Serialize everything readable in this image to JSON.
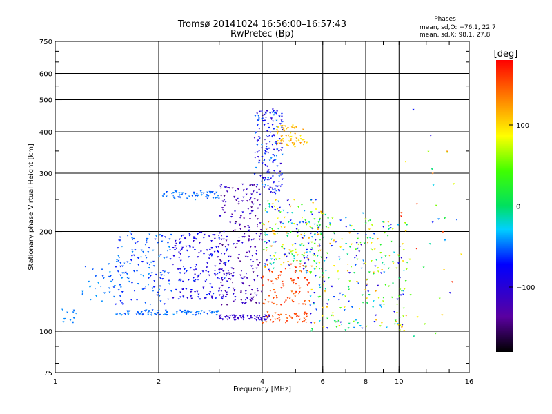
{
  "chart_data": {
    "type": "scatter",
    "title": "Tromsø 20141024  16:56:00–16:57:43",
    "subtitle": "RwPretec (Bp)",
    "xlabel": "Frequency [MHz]",
    "ylabel": "Stationary phase Virtual Height [km]",
    "x_scale": "log",
    "y_scale": "log",
    "xlim": [
      1,
      16
    ],
    "ylim": [
      75,
      750
    ],
    "grid": true,
    "x_ticks": [
      {
        "value": 1,
        "label": "1"
      },
      {
        "value": 2,
        "label": "2"
      },
      {
        "value": 4,
        "label": "4"
      },
      {
        "value": 6,
        "label": "6"
      },
      {
        "value": 8,
        "label": "8"
      },
      {
        "value": 10,
        "label": "10"
      },
      {
        "value": 16,
        "label": "16"
      }
    ],
    "x_gridlines": [
      2,
      4,
      6,
      8,
      10
    ],
    "y_ticks": [
      {
        "value": 75,
        "label": "75"
      },
      {
        "value": 100,
        "label": "100"
      },
      {
        "value": 200,
        "label": "200"
      },
      {
        "value": 300,
        "label": "300"
      },
      {
        "value": 400,
        "label": "400"
      },
      {
        "value": 500,
        "label": "500"
      },
      {
        "value": 600,
        "label": "600"
      },
      {
        "value": 750,
        "label": "750"
      }
    ],
    "y_gridlines": [
      100,
      200,
      300,
      400,
      500,
      600
    ],
    "phase_stats": {
      "heading": "Phases",
      "line_o": "mean, sd,O: −76.1, 22.7",
      "line_x": "mean, sd,X:  98.1, 27.8"
    },
    "colorbar": {
      "title": "[deg]",
      "min": -180,
      "max": 180,
      "ticks": [
        {
          "value": 100,
          "label": "100"
        },
        {
          "value": 0,
          "label": "0"
        },
        {
          "value": -100,
          "label": "−100"
        }
      ]
    },
    "color_field": "phase_deg",
    "clusters": [
      {
        "f": [
          1.03,
          1.15
        ],
        "h": [
          104,
          118
        ],
        "phase": [
          -50,
          -40
        ],
        "n": 12
      },
      {
        "f": [
          1.2,
          1.5
        ],
        "h": [
          120,
          160
        ],
        "phase": [
          -60,
          -35
        ],
        "n": 30
      },
      {
        "f": [
          1.5,
          3.0
        ],
        "h": [
          112,
          116
        ],
        "phase": [
          -60,
          -40
        ],
        "n": 90
      },
      {
        "f": [
          3.0,
          4.2
        ],
        "h": [
          108,
          112
        ],
        "phase": [
          -120,
          -95
        ],
        "n": 70
      },
      {
        "f": [
          4.0,
          5.5
        ],
        "h": [
          106,
          115
        ],
        "phase": [
          140,
          165
        ],
        "n": 45
      },
      {
        "f": [
          1.5,
          2.2
        ],
        "h": [
          120,
          200
        ],
        "phase": [
          -70,
          -40
        ],
        "n": 140
      },
      {
        "f": [
          2.2,
          3.2
        ],
        "h": [
          125,
          200
        ],
        "phase": [
          -110,
          -60
        ],
        "n": 180
      },
      {
        "f": [
          3.0,
          4.0
        ],
        "h": [
          120,
          280
        ],
        "phase": [
          -150,
          -90
        ],
        "n": 220
      },
      {
        "f": [
          2.0,
          3.0
        ],
        "h": [
          250,
          265
        ],
        "phase": [
          -60,
          -40
        ],
        "n": 60
      },
      {
        "f": [
          3.8,
          4.6
        ],
        "h": [
          260,
          470
        ],
        "phase": [
          -110,
          -40
        ],
        "n": 170
      },
      {
        "f": [
          4.4,
          5.4
        ],
        "h": [
          360,
          420
        ],
        "phase": [
          90,
          130
        ],
        "n": 60
      },
      {
        "f": [
          4.0,
          6.0
        ],
        "h": [
          150,
          250
        ],
        "phase": [
          -110,
          130
        ],
        "n": 200
      },
      {
        "f": [
          4.0,
          5.5
        ],
        "h": [
          120,
          160
        ],
        "phase": [
          140,
          170
        ],
        "n": 80
      },
      {
        "f": [
          5.5,
          8.0
        ],
        "h": [
          100,
          230
        ],
        "phase": [
          -110,
          120
        ],
        "n": 160
      },
      {
        "f": [
          8.0,
          10.5
        ],
        "h": [
          100,
          220
        ],
        "phase": [
          -100,
          130
        ],
        "n": 120
      },
      {
        "f": [
          10.0,
          15.5
        ],
        "h": [
          90,
          500
        ],
        "phase": [
          -100,
          170
        ],
        "n": 40
      }
    ]
  }
}
